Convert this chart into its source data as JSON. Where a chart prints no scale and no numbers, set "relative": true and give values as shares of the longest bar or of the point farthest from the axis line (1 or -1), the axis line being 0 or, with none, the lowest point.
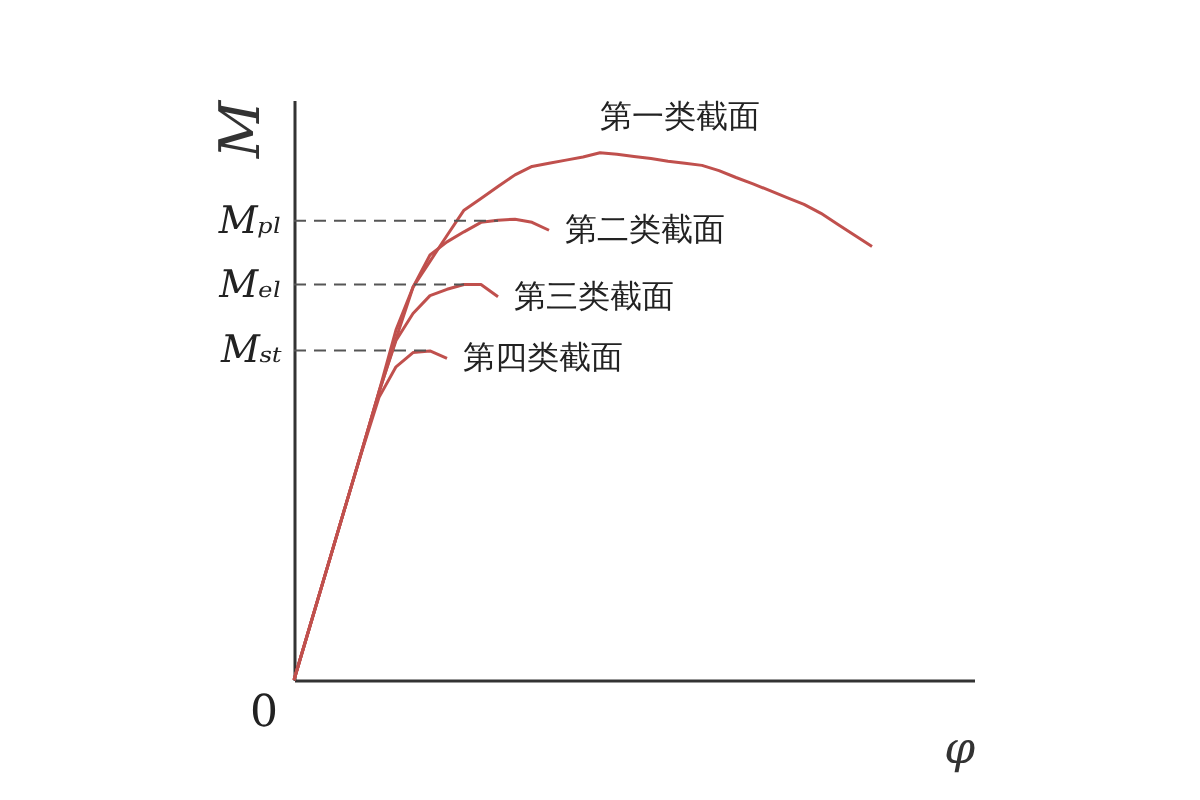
{
  "chart_data": {
    "type": "line",
    "relative": true,
    "xlabel": "φ",
    "ylabel": "M",
    "line_style": "solid",
    "categories": [
      null,
      null,
      null,
      null,
      null,
      null,
      null,
      null,
      null,
      null,
      null,
      null,
      null,
      null,
      null,
      null,
      null,
      null,
      null,
      null,
      null,
      null,
      null,
      null,
      null,
      null,
      null,
      null,
      null,
      null,
      null,
      null,
      null,
      null,
      null,
      null,
      null,
      null,
      null,
      null,
      null
    ],
    "series": [
      {
        "name": "第一类截面",
        "color": "#c0504d",
        "values": [
          0,
          0.109,
          0.218,
          0.327,
          0.436,
          0.545,
          0.647,
          0.745,
          0.794,
          0.843,
          0.891,
          0.913,
          0.936,
          0.958,
          0.974,
          0.98,
          0.986,
          0.992,
          1,
          0.997,
          0.993,
          0.989,
          0.984,
          0.98,
          0.976,
          0.966,
          0.953,
          0.941,
          0.928,
          0.915,
          0.902,
          0.885,
          0.864,
          0.843,
          0.822,
          null,
          null,
          null,
          null,
          null,
          null
        ]
      },
      {
        "name": "第二类截面",
        "color": "#c0504d",
        "values": [
          0,
          0.109,
          0.218,
          0.327,
          0.436,
          0.547,
          0.664,
          0.745,
          0.806,
          0.831,
          0.85,
          0.868,
          0.872,
          0.874,
          0.868,
          0.853,
          null,
          null,
          null,
          null,
          null,
          null,
          null,
          null,
          null,
          null,
          null,
          null,
          null,
          null,
          null,
          null,
          null,
          null,
          null,
          null,
          null,
          null,
          null,
          null,
          null
        ]
      },
      {
        "name": "第三类截面",
        "color": "#c0504d",
        "values": [
          0,
          0.109,
          0.218,
          0.327,
          0.436,
          0.547,
          0.644,
          0.695,
          0.729,
          0.741,
          0.75,
          0.75,
          0.727,
          null,
          null,
          null,
          null,
          null,
          null,
          null,
          null,
          null,
          null,
          null,
          null,
          null,
          null,
          null,
          null,
          null,
          null,
          null,
          null,
          null,
          null,
          null,
          null,
          null,
          null,
          null,
          null
        ]
      },
      {
        "name": "第四类截面",
        "color": "#c0504d",
        "values": [
          0,
          0.109,
          0.218,
          0.327,
          0.434,
          0.536,
          0.594,
          0.621,
          0.624,
          0.61,
          null,
          null,
          null,
          null,
          null,
          null,
          null,
          null,
          null,
          null,
          null,
          null,
          null,
          null,
          null,
          null,
          null,
          null,
          null,
          null,
          null,
          null,
          null,
          null,
          null,
          null,
          null,
          null,
          null,
          null,
          null
        ]
      }
    ],
    "ref_lines": [
      {
        "axis": "y",
        "value": 0.871,
        "label": "Mₚₗ",
        "color": "#555555",
        "line_style": "dashed"
      },
      {
        "axis": "y",
        "value": 0.75,
        "label": "Mₑₗ",
        "color": "#555555",
        "line_style": "dashed"
      },
      {
        "axis": "y",
        "value": 0.625,
        "label": "Mₛₜ",
        "color": "#555555",
        "line_style": "dashed"
      }
    ],
    "annotations": [
      "0"
    ]
  }
}
